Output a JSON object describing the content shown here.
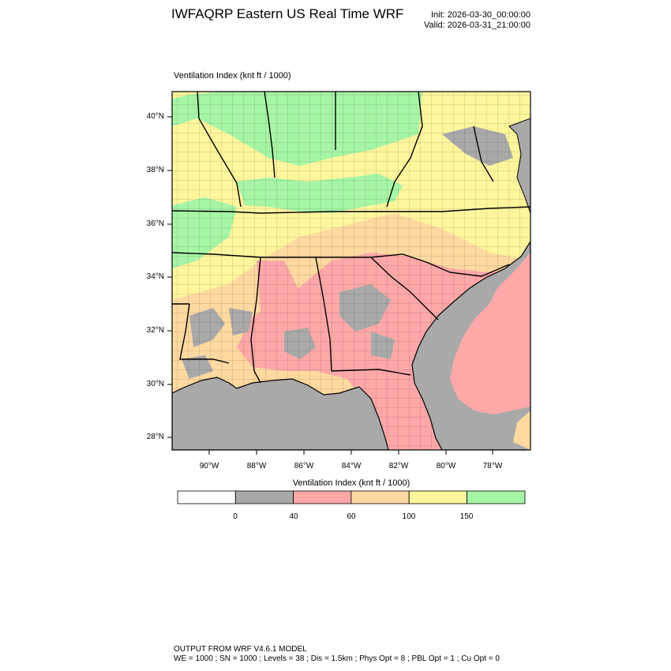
{
  "header": {
    "title": "IWFAQRP Eastern US Real Time WRF",
    "init": "Init: 2026-03-30_00:00:00",
    "valid": "Valid: 2026-03-31_21:00:00"
  },
  "field_label": "Ventilation Index   (knt ft / 1000)",
  "map": {
    "lat_labels": [
      "40°N",
      "38°N",
      "36°N",
      "34°N",
      "32°N",
      "30°N",
      "28°N"
    ],
    "lon_labels": [
      "90°W",
      "88°W",
      "86°W",
      "84°W",
      "82°W",
      "80°W",
      "78°W"
    ],
    "colors": {
      "water": "#a9a9a9",
      "bin_40_60": "#ffa8a8",
      "bin_60_100": "#ffd9a0",
      "bin_100_150": "#fff59c",
      "bin_150_plus": "#a6f5a6",
      "boundary": "#000000"
    }
  },
  "colorbar": {
    "title": "Ventilation Index  (knt ft / 1000)",
    "bins": [
      {
        "color": "#ffffff"
      },
      {
        "color": "#a9a9a9"
      },
      {
        "color": "#ffa8a8"
      },
      {
        "color": "#ffd9a0"
      },
      {
        "color": "#fff59c"
      },
      {
        "color": "#a6f5a6"
      }
    ],
    "ticks": [
      "0",
      "40",
      "60",
      "100",
      "150"
    ]
  },
  "footer": {
    "line1": "OUTPUT FROM WRF V4.6.1 MODEL",
    "line2": "WE = 1000 ; SN = 1000 ; Levels = 38 ; Dis = 1.5km ; Phys Opt = 8 ; PBL Opt = 1 ; Cu Opt = 0"
  }
}
